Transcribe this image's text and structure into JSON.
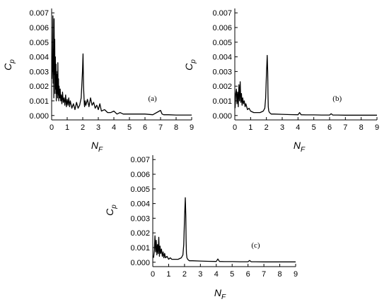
{
  "chart_data": [
    {
      "type": "line",
      "panel_label": "(a)",
      "xlabel_main": "N",
      "xlabel_sub": "F",
      "ylabel_main": "C",
      "ylabel_sub": "p",
      "xlim": [
        0,
        9
      ],
      "ylim": [
        -0.0003,
        0.0073
      ],
      "xticks": [
        0,
        1,
        2,
        3,
        4,
        5,
        6,
        7,
        8,
        9
      ],
      "yticks": [
        0.0,
        0.001,
        0.002,
        0.003,
        0.004,
        0.005,
        0.006,
        0.007
      ],
      "ytick_labels": [
        "0.000",
        "0.001",
        "0.002",
        "0.003",
        "0.004",
        "0.005",
        "0.006",
        "0.007"
      ],
      "series": [
        {
          "x": [
            0.02,
            0.05,
            0.08,
            0.1,
            0.12,
            0.14,
            0.16,
            0.18,
            0.2,
            0.22,
            0.24,
            0.26,
            0.28,
            0.3,
            0.32,
            0.34,
            0.36,
            0.38,
            0.4,
            0.42,
            0.44,
            0.46,
            0.48,
            0.5,
            0.52,
            0.55,
            0.58,
            0.62,
            0.66,
            0.7,
            0.75,
            0.8,
            0.85,
            0.9,
            0.95,
            1.0,
            1.05,
            1.1,
            1.15,
            1.2,
            1.3,
            1.4,
            1.5,
            1.6,
            1.7,
            1.8,
            1.9,
            1.98,
            2.02,
            2.05,
            2.08,
            2.1,
            2.12,
            2.15,
            2.2,
            2.3,
            2.4,
            2.5,
            2.6,
            2.7,
            2.8,
            2.9,
            3.0,
            3.1,
            3.2,
            3.4,
            3.6,
            3.8,
            4.0,
            4.2,
            4.4,
            4.6,
            5.0,
            5.5,
            6.0,
            6.5,
            7.0,
            7.1,
            7.2,
            7.5,
            8.0,
            8.5,
            9.0
          ],
          "y": [
            0.0025,
            0.0035,
            0.0068,
            0.0022,
            0.0045,
            0.0012,
            0.0066,
            0.0028,
            0.0052,
            0.0015,
            0.004,
            0.0018,
            0.0035,
            0.001,
            0.003,
            0.0015,
            0.0028,
            0.0012,
            0.0036,
            0.0014,
            0.0025,
            0.001,
            0.002,
            0.0015,
            0.0012,
            0.0018,
            0.001,
            0.0014,
            0.0008,
            0.0016,
            0.0009,
            0.0012,
            0.0007,
            0.0014,
            0.0006,
            0.0011,
            0.0007,
            0.0012,
            0.0006,
            0.001,
            0.0005,
            0.0008,
            0.0004,
            0.0009,
            0.0005,
            0.0007,
            0.0012,
            0.003,
            0.0042,
            0.002,
            0.0012,
            0.0008,
            0.0006,
            0.001,
            0.0007,
            0.0011,
            0.0006,
            0.0012,
            0.0007,
            0.0009,
            0.0005,
            0.0007,
            0.0004,
            0.0008,
            0.0003,
            0.0004,
            0.0002,
            0.0002,
            0.0003,
            0.0001,
            0.0002,
            0.0001,
            0.0001,
            0.0001,
            0.0001,
            5e-05,
            0.00035,
            0.0001,
            5e-05,
            5e-05,
            3e-05,
            3e-05,
            3e-05
          ]
        }
      ]
    },
    {
      "type": "line",
      "panel_label": "(b)",
      "xlabel_main": "N",
      "xlabel_sub": "F",
      "ylabel_main": "C",
      "ylabel_sub": "p",
      "xlim": [
        0,
        9
      ],
      "ylim": [
        -0.0003,
        0.0073
      ],
      "xticks": [
        0,
        1,
        2,
        3,
        4,
        5,
        6,
        7,
        8,
        9
      ],
      "yticks": [
        0.0,
        0.001,
        0.002,
        0.003,
        0.004,
        0.005,
        0.006,
        0.007
      ],
      "ytick_labels": [
        "0.000",
        "0.001",
        "0.002",
        "0.003",
        "0.004",
        "0.005",
        "0.006",
        "0.007"
      ],
      "series": [
        {
          "x": [
            0.02,
            0.06,
            0.1,
            0.14,
            0.18,
            0.22,
            0.26,
            0.3,
            0.34,
            0.38,
            0.42,
            0.46,
            0.5,
            0.55,
            0.6,
            0.65,
            0.7,
            0.8,
            0.9,
            1.0,
            1.2,
            1.4,
            1.6,
            1.8,
            1.9,
            1.95,
            2.0,
            2.05,
            2.08,
            2.1,
            2.12,
            2.15,
            2.2,
            2.3,
            2.5,
            3.0,
            3.5,
            4.0,
            4.1,
            4.2,
            4.5,
            5.0,
            5.5,
            6.0,
            6.1,
            6.2,
            6.5,
            7.0,
            8.0,
            9.0
          ],
          "y": [
            0.0005,
            0.0015,
            0.0018,
            0.0008,
            0.0016,
            0.0006,
            0.0021,
            0.001,
            0.0023,
            0.0009,
            0.0015,
            0.0007,
            0.0012,
            0.0008,
            0.001,
            0.0006,
            0.0008,
            0.0004,
            0.0005,
            0.0003,
            0.0002,
            0.0002,
            0.0002,
            0.0003,
            0.0005,
            0.0012,
            0.0028,
            0.0041,
            0.003,
            0.0015,
            0.0006,
            0.0003,
            0.0002,
            0.0001,
            0.0001,
            8e-05,
            6e-05,
            5e-05,
            0.0002,
            5e-05,
            4e-05,
            4e-05,
            3e-05,
            3e-05,
            0.00012,
            3e-05,
            3e-05,
            2e-05,
            2e-05,
            2e-05
          ]
        }
      ]
    },
    {
      "type": "line",
      "panel_label": "(c)",
      "xlabel_main": "N",
      "xlabel_sub": "F",
      "ylabel_main": "C",
      "ylabel_sub": "p",
      "xlim": [
        0,
        9
      ],
      "ylim": [
        -0.0003,
        0.0073
      ],
      "xticks": [
        0,
        1,
        2,
        3,
        4,
        5,
        6,
        7,
        8,
        9
      ],
      "yticks": [
        0.0,
        0.001,
        0.002,
        0.003,
        0.004,
        0.005,
        0.006,
        0.007
      ],
      "ytick_labels": [
        "0.000",
        "0.001",
        "0.002",
        "0.003",
        "0.004",
        "0.005",
        "0.006",
        "0.007"
      ],
      "series": [
        {
          "x": [
            0.05,
            0.1,
            0.14,
            0.18,
            0.22,
            0.26,
            0.3,
            0.34,
            0.38,
            0.42,
            0.46,
            0.5,
            0.55,
            0.6,
            0.65,
            0.7,
            0.75,
            0.8,
            0.9,
            1.0,
            1.1,
            1.2,
            1.4,
            1.6,
            1.8,
            1.9,
            1.95,
            2.0,
            2.05,
            2.08,
            2.1,
            2.12,
            2.15,
            2.2,
            2.3,
            2.5,
            3.0,
            3.5,
            4.0,
            4.1,
            4.2,
            4.5,
            5.0,
            5.5,
            6.0,
            6.1,
            6.2,
            6.5,
            7.0,
            8.0,
            9.0
          ],
          "y": [
            0.0003,
            0.0008,
            0.0018,
            0.0007,
            0.0015,
            0.0005,
            0.0012,
            0.0006,
            0.0017,
            0.0004,
            0.0011,
            0.0006,
            0.0009,
            0.0004,
            0.0007,
            0.0003,
            0.0006,
            0.0003,
            0.0004,
            0.0002,
            0.0003,
            0.0002,
            0.0002,
            0.0002,
            0.0003,
            0.0005,
            0.0012,
            0.003,
            0.0044,
            0.0032,
            0.0016,
            0.0006,
            0.0003,
            0.0002,
            0.0001,
            0.0001,
            8e-05,
            6e-05,
            5e-05,
            0.00022,
            5e-05,
            4e-05,
            4e-05,
            3e-05,
            3e-05,
            0.00012,
            3e-05,
            3e-05,
            2e-05,
            2e-05,
            2e-05
          ]
        }
      ]
    }
  ]
}
